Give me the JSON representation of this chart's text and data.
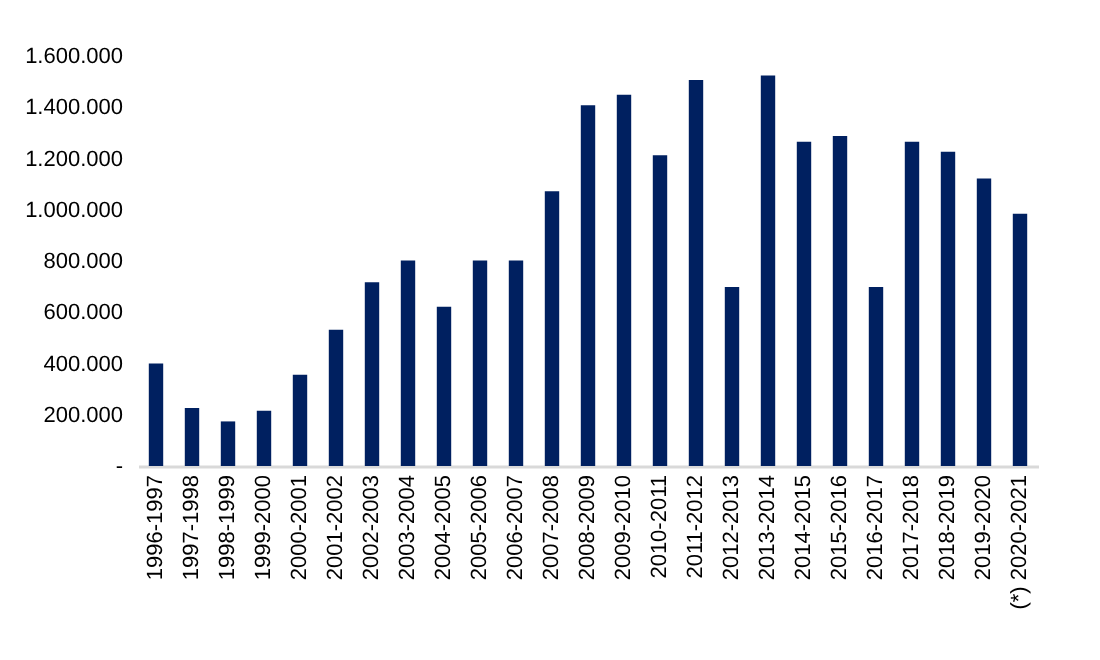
{
  "chart_data": {
    "type": "bar",
    "categories": [
      "1996-1997",
      "1997-1998",
      "1998-1999",
      "1999-2000",
      "2000-2001",
      "2001-2002",
      "2002-2003",
      "2003-2004",
      "2004-2005",
      "2005-2006",
      "2006-2007",
      "2007-2008",
      "2008-2009",
      "2009-2010",
      "2010-2011",
      "2011-2012",
      "2012-2013",
      "2013-2014",
      "2014-2015",
      "2015-2016",
      "2016-2017",
      "2017-2018",
      "2018-2019",
      "2019-2020",
      "(*) 2020-2021"
    ],
    "values": [
      400000,
      226000,
      174000,
      216000,
      356000,
      532000,
      717000,
      802000,
      621000,
      802000,
      802000,
      1072000,
      1408000,
      1449000,
      1213000,
      1506000,
      699000,
      1524000,
      1265000,
      1288000,
      699000,
      1265000,
      1226000,
      1122000,
      984000
    ],
    "color": "#002060",
    "ylim": [
      0,
      1600000
    ],
    "yticks": [
      {
        "value": 0,
        "label": "-"
      },
      {
        "value": 200000,
        "label": "200.000"
      },
      {
        "value": 400000,
        "label": "400.000"
      },
      {
        "value": 600000,
        "label": "600.000"
      },
      {
        "value": 800000,
        "label": "800.000"
      },
      {
        "value": 1000000,
        "label": "1.000.000"
      },
      {
        "value": 1200000,
        "label": "1.200.000"
      },
      {
        "value": 1400000,
        "label": "1.400.000"
      },
      {
        "value": 1600000,
        "label": "1.600.000"
      }
    ],
    "grid": false
  }
}
